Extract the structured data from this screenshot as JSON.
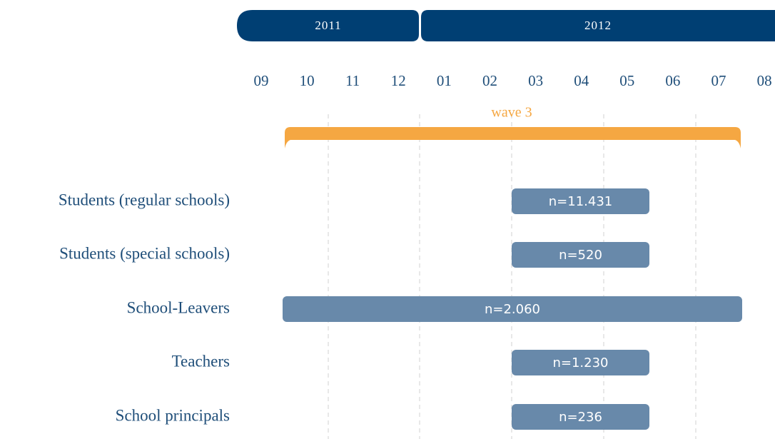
{
  "timeline": {
    "years": [
      "2011",
      "2012"
    ],
    "months": [
      "09",
      "10",
      "11",
      "12",
      "01",
      "02",
      "03",
      "04",
      "05",
      "06",
      "07",
      "08"
    ],
    "wave": "wave 3",
    "rows": [
      {
        "label": "Students (regular schools)",
        "bar_label": "n=11.431"
      },
      {
        "label": "Students (special schools)",
        "bar_label": "n=520"
      },
      {
        "label": "School-Leavers",
        "bar_label": "n=2.060"
      },
      {
        "label": "Teachers",
        "bar_label": "n=1.230"
      },
      {
        "label": "School principals",
        "bar_label": "n=236"
      }
    ]
  }
}
